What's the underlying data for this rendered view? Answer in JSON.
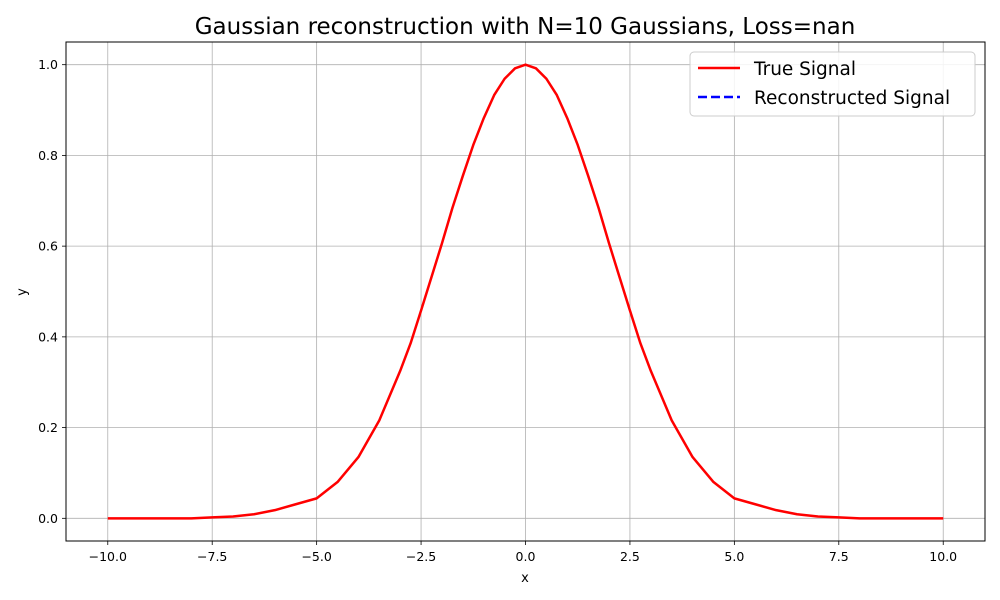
{
  "chart_data": {
    "type": "line",
    "title": "Gaussian reconstruction with N=10 Gaussians, Loss=nan",
    "xlabel": "x",
    "ylabel": "y",
    "xlim": [
      -11,
      11
    ],
    "ylim": [
      -0.05,
      1.05
    ],
    "xticks": [
      -10.0,
      -7.5,
      -5.0,
      -2.5,
      0.0,
      2.5,
      5.0,
      7.5,
      10.0
    ],
    "xtick_labels": [
      "−10.0",
      "−7.5",
      "−5.0",
      "−2.5",
      "0.0",
      "2.5",
      "5.0",
      "7.5",
      "10.0"
    ],
    "yticks": [
      0.0,
      0.2,
      0.4,
      0.6,
      0.8,
      1.0
    ],
    "ytick_labels": [
      "0.0",
      "0.2",
      "0.4",
      "0.6",
      "0.8",
      "1.0"
    ],
    "grid": true,
    "legend_position": "top-right",
    "series": [
      {
        "name": "True Signal",
        "color": "#ff0000",
        "linestyle": "solid",
        "x": [
          -10,
          -9,
          -8,
          -7.5,
          -7,
          -6.5,
          -6,
          -5.5,
          -5,
          -4.5,
          -4,
          -3.5,
          -3,
          -2.75,
          -2.5,
          -2.25,
          -2,
          -1.75,
          -1.5,
          -1.25,
          -1,
          -0.75,
          -0.5,
          -0.25,
          0,
          0.25,
          0.5,
          0.75,
          1,
          1.25,
          1.5,
          1.75,
          2,
          2.25,
          2.5,
          2.75,
          3,
          3.5,
          4,
          4.5,
          5,
          5.5,
          6,
          6.5,
          7,
          7.5,
          8,
          9,
          10
        ],
        "y": [
          0.0,
          0.0,
          0.0,
          0.002,
          0.004,
          0.009,
          0.018,
          0.031,
          0.044,
          0.08,
          0.135,
          0.216,
          0.325,
          0.386,
          0.458,
          0.532,
          0.606,
          0.684,
          0.755,
          0.823,
          0.882,
          0.933,
          0.969,
          0.992,
          1.0,
          0.992,
          0.969,
          0.933,
          0.882,
          0.823,
          0.755,
          0.684,
          0.606,
          0.532,
          0.458,
          0.386,
          0.325,
          0.216,
          0.135,
          0.08,
          0.044,
          0.031,
          0.018,
          0.009,
          0.004,
          0.002,
          0.0,
          0.0,
          0.0
        ]
      },
      {
        "name": "Reconstructed Signal",
        "color": "#0000ff",
        "linestyle": "dashed",
        "x": [],
        "y": []
      }
    ]
  }
}
